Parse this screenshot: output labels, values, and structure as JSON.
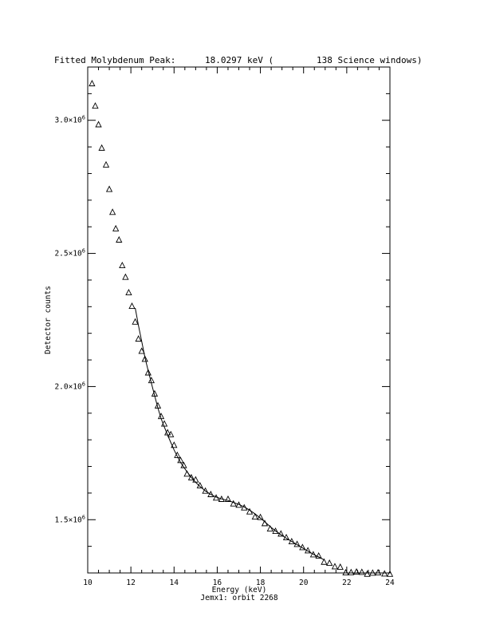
{
  "chart_data": {
    "type": "scatter",
    "title_left": "Fitted Molybdenum Peak:",
    "title_energy": "18.0297 keV (",
    "title_windows": "138 Science windows)",
    "xlabel": "Energy (keV)",
    "subtitle": "Jemx1: orbit 2268",
    "ylabel": "Detector counts",
    "xlim": [
      10,
      24
    ],
    "ylim": [
      1300000,
      3200000
    ],
    "x_ticks": [
      10,
      12,
      14,
      16,
      18,
      20,
      22,
      24
    ],
    "x_tick_labels": [
      "10",
      "12",
      "14",
      "16",
      "18",
      "20",
      "22",
      "24"
    ],
    "x_minor_step": 0.5,
    "y_ticks": [
      1500000,
      2000000,
      2500000,
      3000000
    ],
    "y_tick_labels": [
      {
        "mant": "1.5",
        "exp": "6"
      },
      {
        "mant": "2.0",
        "exp": "6"
      },
      {
        "mant": "2.5",
        "exp": "6"
      },
      {
        "mant": "3.0",
        "exp": "6"
      }
    ],
    "y_minor_step": 100000,
    "marker": "triangle",
    "series": [
      {
        "kind": "points",
        "x": [
          10.2,
          10.35,
          10.5,
          10.65,
          10.85,
          11.0,
          11.15,
          11.3,
          11.45,
          11.6,
          11.75,
          11.9,
          12.05,
          12.2,
          12.35,
          12.5,
          12.65,
          12.8,
          12.95,
          13.1,
          13.25,
          13.4,
          13.55,
          13.7,
          13.85,
          14.0,
          14.15,
          14.3,
          14.45,
          14.6,
          14.8,
          15.0,
          15.2,
          15.45,
          15.7,
          15.95,
          16.2,
          16.5,
          16.75,
          17.0,
          17.25,
          17.5,
          17.75,
          18.0,
          18.2,
          18.45,
          18.7,
          18.95,
          19.2,
          19.45,
          19.7,
          19.95,
          20.2,
          20.45,
          20.7,
          20.95,
          21.2,
          21.45,
          21.7,
          21.95,
          22.2,
          22.45,
          22.7,
          22.95,
          23.2,
          23.45,
          23.75,
          24.0
        ],
        "y": [
          3137000,
          3053000,
          2983000,
          2895000,
          2832000,
          2740000,
          2654000,
          2592000,
          2550000,
          2454000,
          2410000,
          2352000,
          2301000,
          2242000,
          2178000,
          2132000,
          2102000,
          2051000,
          2022000,
          1972000,
          1927000,
          1887000,
          1859000,
          1826000,
          1819000,
          1779000,
          1741000,
          1722000,
          1703000,
          1671000,
          1657000,
          1649000,
          1627000,
          1607000,
          1594000,
          1581000,
          1576000,
          1576000,
          1559000,
          1554000,
          1544000,
          1529000,
          1510000,
          1508000,
          1485000,
          1465000,
          1456000,
          1446000,
          1432000,
          1417000,
          1407000,
          1395000,
          1383000,
          1368000,
          1363000,
          1340000,
          1336000,
          1323000,
          1321000,
          1300000,
          1301000,
          1303000,
          1302000,
          1295000,
          1299000,
          1300000,
          1296000,
          1295000
        ]
      },
      {
        "kind": "fit",
        "x": [
          12.2,
          12.35,
          12.5,
          12.65,
          12.8,
          12.95,
          13.1,
          13.25,
          13.4,
          13.55,
          13.7,
          13.85,
          14.0,
          14.15,
          14.3,
          14.45,
          14.6,
          14.8,
          15.0,
          15.2,
          15.45,
          15.7,
          15.95,
          16.2,
          16.5,
          16.75,
          17.0,
          17.25,
          17.5,
          17.75,
          18.0,
          18.2,
          18.45,
          18.7,
          18.95,
          19.2,
          19.45,
          19.7,
          19.95,
          20.2,
          20.45,
          20.7,
          20.95
        ],
        "y": [
          2295000,
          2230000,
          2170000,
          2110000,
          2060000,
          2012000,
          1966000,
          1920000,
          1880000,
          1848000,
          1818000,
          1790000,
          1762000,
          1738000,
          1715000,
          1697000,
          1680000,
          1659000,
          1640000,
          1625000,
          1608000,
          1595000,
          1585000,
          1578000,
          1572000,
          1565000,
          1557000,
          1548000,
          1536000,
          1522000,
          1506000,
          1492000,
          1474000,
          1458000,
          1444000,
          1430000,
          1418000,
          1406000,
          1394000,
          1382000,
          1370000,
          1360000,
          1349000
        ]
      }
    ]
  }
}
